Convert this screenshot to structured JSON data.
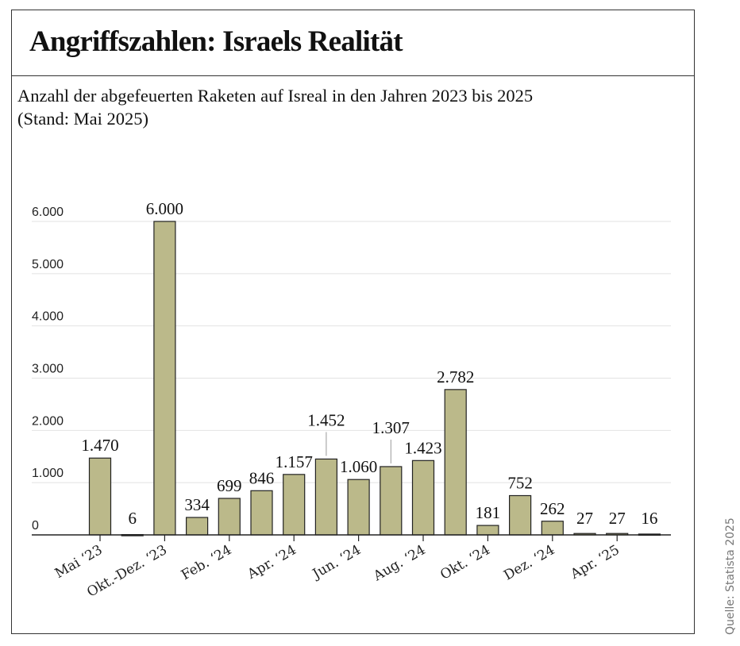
{
  "title": "Angriffszahlen: Israels Realität",
  "subtitle_line1": "Anzahl der abgefeuerten Raketen auf Isreal in den Jahren 2023 bis 2025",
  "subtitle_line2": "(Stand: Mai 2025)",
  "source": "Quelle: Statista 2025",
  "chart_data": {
    "type": "bar",
    "title": "Anzahl der abgefeuerten Raketen auf Isreal in den Jahren 2023 bis 2025 (Stand: Mai 2025)",
    "categories": [
      "Mai ‘23",
      "",
      "Okt.-Dez. ‘23",
      "",
      "Feb. ‘24",
      "",
      "Apr. ‘24",
      "",
      "Jun. ‘24",
      "",
      "Aug. ‘24",
      "",
      "Okt. ‘24",
      "",
      "Dez. ‘24",
      "",
      "Apr. ‘25",
      ""
    ],
    "values": [
      1470,
      6,
      6000,
      334,
      699,
      846,
      1157,
      1452,
      1060,
      1307,
      1423,
      2782,
      181,
      752,
      262,
      27,
      27,
      16
    ],
    "data_labels": [
      "1.470",
      "6",
      "6.000",
      "334",
      "699",
      "846",
      "1.157",
      "1.452",
      "1.060",
      "1.307",
      "1.423",
      "2.782",
      "181",
      "752",
      "262",
      "27",
      "27",
      "16"
    ],
    "yticks": [
      0,
      1000,
      2000,
      3000,
      4000,
      5000,
      6000
    ],
    "ytick_labels": [
      "0",
      "1.000",
      "2.000",
      "3.000",
      "4.000",
      "5.000",
      "6.000"
    ],
    "ylim": [
      0,
      6000
    ],
    "grid": true,
    "bar_color": "#bbb98a",
    "xlabel": "",
    "ylabel": ""
  }
}
